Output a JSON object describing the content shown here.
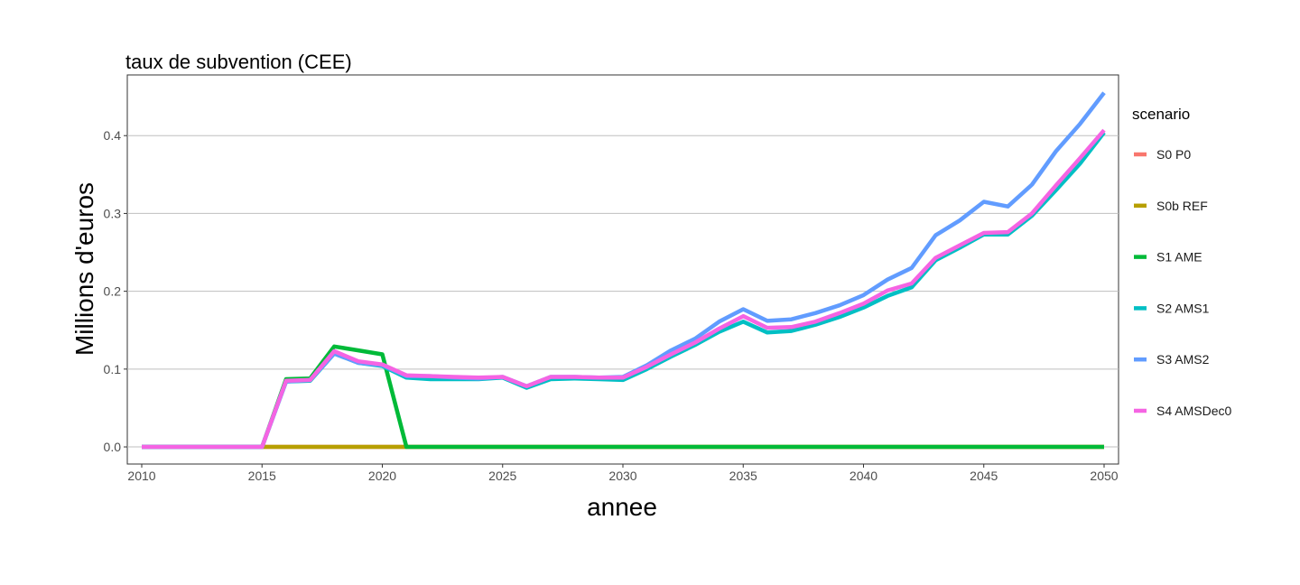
{
  "chart_data": {
    "type": "line",
    "title": "taux de subvention (CEE)",
    "xlabel": "annee",
    "ylabel": "Millions d'euros",
    "xlim": [
      2010,
      2050
    ],
    "ylim": [
      -0.022,
      0.478
    ],
    "x_ticks": [
      2010,
      2015,
      2020,
      2025,
      2030,
      2035,
      2040,
      2045,
      2050
    ],
    "y_ticks": [
      0.0,
      0.1,
      0.2,
      0.3,
      0.4
    ],
    "y_tick_labels": [
      "0.0",
      "0.1",
      "0.2",
      "0.3",
      "0.4"
    ],
    "grid": "horizontal major",
    "legend_title": "scenario",
    "legend_position": "right",
    "x": [
      2010,
      2011,
      2012,
      2013,
      2014,
      2015,
      2016,
      2017,
      2018,
      2019,
      2020,
      2021,
      2022,
      2023,
      2024,
      2025,
      2026,
      2027,
      2028,
      2029,
      2030,
      2031,
      2032,
      2033,
      2034,
      2035,
      2036,
      2037,
      2038,
      2039,
      2040,
      2041,
      2042,
      2043,
      2044,
      2045,
      2046,
      2047,
      2048,
      2049,
      2050
    ],
    "series": [
      {
        "name": "S0 P0",
        "color": "#F8766D",
        "values": [
          0,
          0,
          0,
          0,
          0,
          0,
          0,
          0,
          0,
          0,
          0,
          0,
          0,
          0,
          0,
          0,
          0,
          0,
          0,
          0,
          0,
          0,
          0,
          0,
          0,
          0,
          0,
          0,
          0,
          0,
          0,
          0,
          0,
          0,
          0,
          0,
          0,
          0,
          0,
          0,
          0
        ]
      },
      {
        "name": "S0b REF",
        "color": "#B79F00",
        "values": [
          0,
          0,
          0,
          0,
          0,
          0,
          0,
          0,
          0,
          0,
          0,
          0,
          0,
          0,
          0,
          0,
          0,
          0,
          0,
          0,
          0,
          0,
          0,
          0,
          0,
          0,
          0,
          0,
          0,
          0,
          0,
          0,
          0,
          0,
          0,
          0,
          0,
          0,
          0,
          0,
          0
        ]
      },
      {
        "name": "S1 AME",
        "color": "#00BA38",
        "values": [
          0,
          0,
          0,
          0,
          0,
          0,
          0.087,
          0.088,
          0.129,
          0.124,
          0.119,
          0,
          0,
          0,
          0,
          0,
          0,
          0,
          0,
          0,
          0,
          0,
          0,
          0,
          0,
          0,
          0,
          0,
          0,
          0,
          0,
          0,
          0,
          0,
          0,
          0,
          0,
          0,
          0,
          0,
          0
        ]
      },
      {
        "name": "S2 AMS1",
        "color": "#00BFC4",
        "values": [
          0,
          0,
          0,
          0,
          0,
          0,
          0.084,
          0.085,
          0.12,
          0.108,
          0.104,
          0.089,
          0.087,
          0.087,
          0.087,
          0.089,
          0.076,
          0.087,
          0.088,
          0.087,
          0.086,
          0.1,
          0.116,
          0.131,
          0.148,
          0.161,
          0.147,
          0.149,
          0.157,
          0.167,
          0.179,
          0.194,
          0.205,
          0.24,
          0.256,
          0.273,
          0.273,
          0.297,
          0.33,
          0.364,
          0.404
        ]
      },
      {
        "name": "S3 AMS2",
        "color": "#619CFF",
        "values": [
          0,
          0,
          0,
          0,
          0,
          0,
          0.084,
          0.086,
          0.12,
          0.108,
          0.105,
          0.091,
          0.091,
          0.089,
          0.088,
          0.09,
          0.078,
          0.09,
          0.09,
          0.089,
          0.09,
          0.105,
          0.124,
          0.139,
          0.161,
          0.177,
          0.162,
          0.164,
          0.172,
          0.182,
          0.195,
          0.215,
          0.23,
          0.272,
          0.291,
          0.315,
          0.309,
          0.337,
          0.38,
          0.415,
          0.455
        ]
      },
      {
        "name": "S4 AMSDec0",
        "color": "#F564E3",
        "values": [
          0,
          0,
          0,
          0,
          0,
          0,
          0.085,
          0.086,
          0.123,
          0.11,
          0.106,
          0.092,
          0.091,
          0.09,
          0.089,
          0.09,
          0.078,
          0.09,
          0.09,
          0.089,
          0.089,
          0.103,
          0.119,
          0.134,
          0.152,
          0.168,
          0.153,
          0.154,
          0.161,
          0.172,
          0.184,
          0.201,
          0.21,
          0.243,
          0.259,
          0.275,
          0.276,
          0.3,
          0.336,
          0.371,
          0.407
        ]
      }
    ]
  }
}
